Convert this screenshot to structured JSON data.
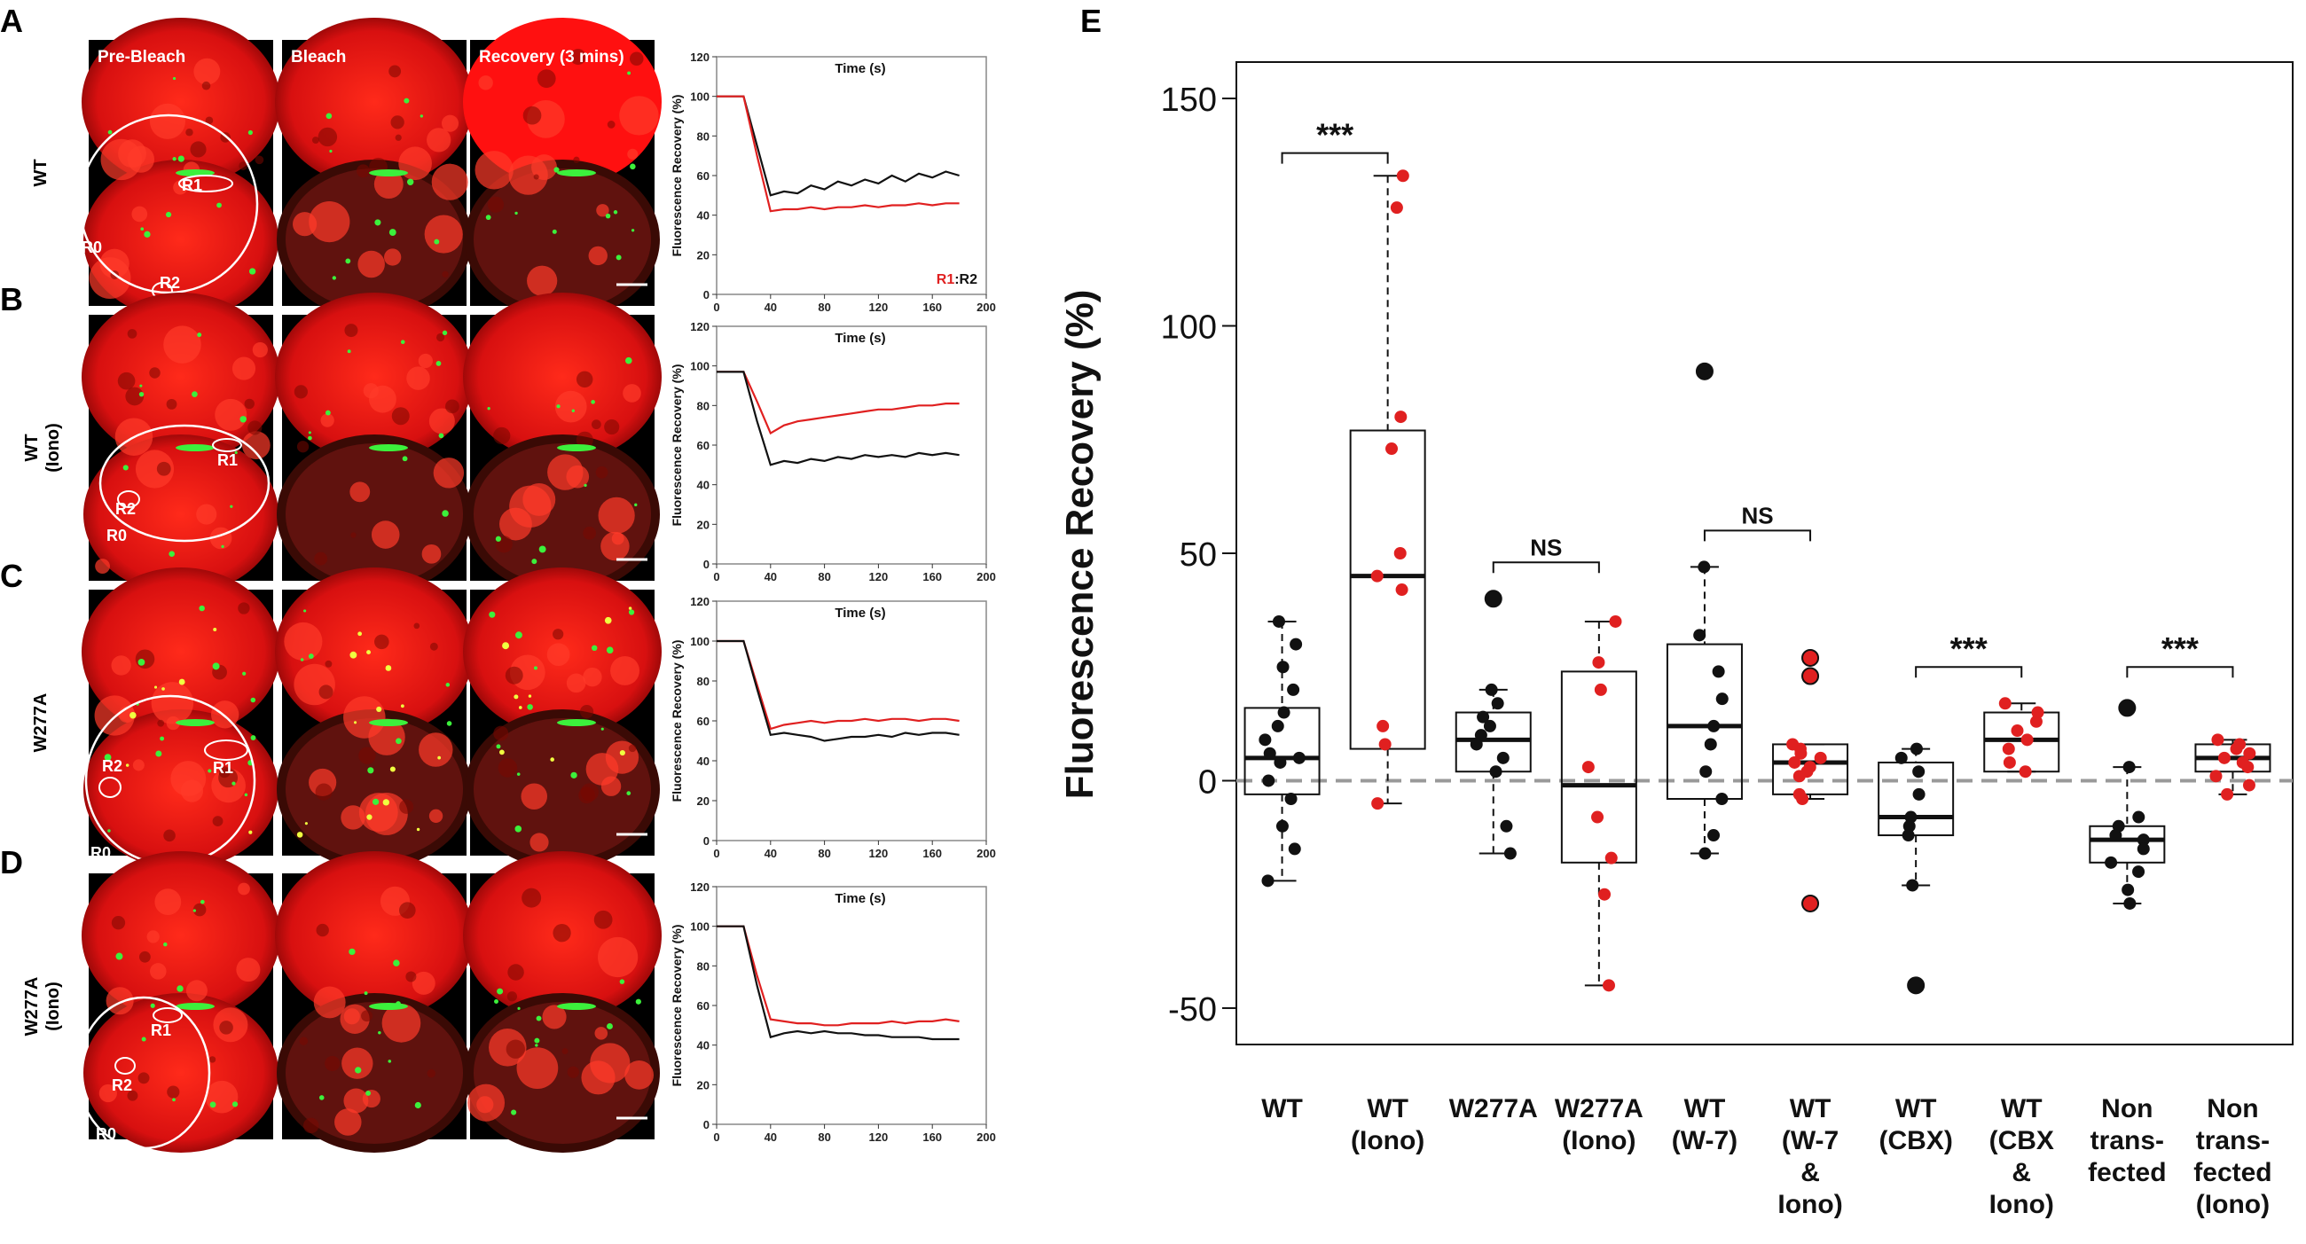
{
  "panel_letters": [
    "A",
    "B",
    "C",
    "D",
    "E"
  ],
  "micro_column_labels": [
    "Pre-Bleach",
    "Bleach",
    "Recovery (3 mins)"
  ],
  "row_labels": [
    [
      "WT"
    ],
    [
      "WT",
      "(Iono)"
    ],
    [
      "W277A"
    ],
    [
      "W277A",
      "(Iono)"
    ]
  ],
  "roi_labels": {
    "r0": "R0",
    "r1": "R1",
    "r2": "R2"
  },
  "colors": {
    "red_series": "#e02020",
    "black_series": "#111111",
    "green_signal": "#3cf03c",
    "cell_red": "#ff1a1a"
  },
  "chart_data": [
    {
      "type": "line",
      "panel": "A",
      "title": "Time (s)",
      "xlabel": "Time (s)",
      "ylabel": "Fluorescence Recovery (%)",
      "xlim": [
        0,
        200
      ],
      "ylim": [
        0,
        120
      ],
      "xticks": [
        0,
        40,
        80,
        120,
        160,
        200
      ],
      "yticks": [
        0,
        20,
        40,
        60,
        80,
        100,
        120
      ],
      "legend": {
        "red": "R1",
        "sep": ":",
        "black": "R2"
      },
      "x": [
        0,
        10,
        20,
        30,
        40,
        50,
        60,
        70,
        80,
        90,
        100,
        110,
        120,
        130,
        140,
        150,
        160,
        170,
        180
      ],
      "series": [
        {
          "name": "R2",
          "color": "black",
          "values": [
            100,
            100,
            100,
            75,
            50,
            52,
            51,
            55,
            53,
            57,
            55,
            58,
            56,
            60,
            57,
            61,
            59,
            62,
            60
          ]
        },
        {
          "name": "R1",
          "color": "red",
          "values": [
            100,
            100,
            100,
            70,
            42,
            43,
            43,
            44,
            43,
            44,
            44,
            45,
            44,
            45,
            45,
            46,
            45,
            46,
            46
          ]
        }
      ]
    },
    {
      "type": "line",
      "panel": "B",
      "title": "Time (s)",
      "xlabel": "Time (s)",
      "ylabel": "Fluorescence Recovery (%)",
      "xlim": [
        0,
        200
      ],
      "ylim": [
        0,
        120
      ],
      "xticks": [
        0,
        40,
        80,
        120,
        160,
        200
      ],
      "yticks": [
        0,
        20,
        40,
        60,
        80,
        100,
        120
      ],
      "x": [
        0,
        10,
        20,
        30,
        40,
        50,
        60,
        70,
        80,
        90,
        100,
        110,
        120,
        130,
        140,
        150,
        160,
        170,
        180
      ],
      "series": [
        {
          "name": "R1",
          "color": "red",
          "values": [
            97,
            97,
            97,
            82,
            66,
            70,
            72,
            73,
            74,
            75,
            76,
            77,
            78,
            78,
            79,
            80,
            80,
            81,
            81
          ]
        },
        {
          "name": "R2",
          "color": "black",
          "values": [
            97,
            97,
            97,
            72,
            50,
            52,
            51,
            53,
            52,
            54,
            53,
            55,
            54,
            55,
            54,
            56,
            55,
            56,
            55
          ]
        }
      ]
    },
    {
      "type": "line",
      "panel": "C",
      "title": "Time (s)",
      "xlabel": "Time (s)",
      "ylabel": "Fluorescence Recovery (%)",
      "xlim": [
        0,
        200
      ],
      "ylim": [
        0,
        120
      ],
      "xticks": [
        0,
        40,
        80,
        120,
        160,
        200
      ],
      "yticks": [
        0,
        20,
        40,
        60,
        80,
        100,
        120
      ],
      "x": [
        0,
        10,
        20,
        30,
        40,
        50,
        60,
        70,
        80,
        90,
        100,
        110,
        120,
        130,
        140,
        150,
        160,
        170,
        180
      ],
      "series": [
        {
          "name": "R1",
          "color": "red",
          "values": [
            100,
            100,
            100,
            78,
            56,
            58,
            59,
            60,
            59,
            60,
            60,
            61,
            60,
            61,
            61,
            60,
            61,
            61,
            60
          ]
        },
        {
          "name": "R2",
          "color": "black",
          "values": [
            100,
            100,
            100,
            76,
            53,
            54,
            53,
            52,
            50,
            51,
            52,
            52,
            53,
            52,
            54,
            53,
            54,
            54,
            53
          ]
        }
      ]
    },
    {
      "type": "line",
      "panel": "D",
      "title": "Time (s)",
      "xlabel": "Time (s)",
      "ylabel": "Fluorescence Recovery (%)",
      "xlim": [
        0,
        200
      ],
      "ylim": [
        0,
        120
      ],
      "xticks": [
        0,
        40,
        80,
        120,
        160,
        200
      ],
      "yticks": [
        0,
        20,
        40,
        60,
        80,
        100,
        120
      ],
      "x": [
        0,
        10,
        20,
        30,
        40,
        50,
        60,
        70,
        80,
        90,
        100,
        110,
        120,
        130,
        140,
        150,
        160,
        170,
        180
      ],
      "series": [
        {
          "name": "R1",
          "color": "red",
          "values": [
            100,
            100,
            100,
            75,
            53,
            52,
            51,
            51,
            50,
            50,
            51,
            51,
            51,
            52,
            51,
            52,
            52,
            53,
            52
          ]
        },
        {
          "name": "R2",
          "color": "black",
          "values": [
            100,
            100,
            100,
            70,
            44,
            46,
            47,
            46,
            47,
            46,
            46,
            45,
            45,
            44,
            44,
            44,
            43,
            43,
            43
          ]
        }
      ]
    },
    {
      "type": "box",
      "panel": "E",
      "ylabel": "Fluorescence Recovery (%)",
      "ylim": [
        -58,
        158
      ],
      "yticks": [
        -50,
        0,
        50,
        100,
        150
      ],
      "reference_line": 0,
      "categories": [
        [
          "WT"
        ],
        [
          "WT",
          "(Iono)"
        ],
        [
          "W277A"
        ],
        [
          "W277A",
          "(Iono)"
        ],
        [
          "WT",
          "(W-7)"
        ],
        [
          "WT",
          "(W-7",
          "&",
          "Iono)"
        ],
        [
          "WT",
          "(CBX)"
        ],
        [
          "WT",
          "(CBX",
          "&",
          "Iono)"
        ],
        [
          "Non",
          "trans-",
          "fected"
        ],
        [
          "Non",
          "trans-",
          "fected",
          "(Iono)"
        ]
      ],
      "groups": [
        {
          "color": "black",
          "q1": -3,
          "median": 5,
          "q3": 16,
          "whisker_low": -22,
          "whisker_high": 35,
          "points": [
            35,
            30,
            25,
            20,
            15,
            12,
            9,
            6,
            5,
            4,
            0,
            -4,
            -10,
            -15,
            -22
          ],
          "outliers": []
        },
        {
          "color": "red",
          "q1": 7,
          "median": 45,
          "q3": 77,
          "whisker_low": -5,
          "whisker_high": 133,
          "points": [
            133,
            126,
            80,
            73,
            50,
            45,
            42,
            12,
            8,
            -5
          ],
          "outliers": []
        },
        {
          "color": "black",
          "q1": 2,
          "median": 9,
          "q3": 15,
          "whisker_low": -16,
          "whisker_high": 20,
          "points": [
            20,
            17,
            14,
            12,
            10,
            8,
            5,
            2,
            -10,
            -16
          ],
          "outliers": [
            40
          ]
        },
        {
          "color": "red",
          "q1": -18,
          "median": -1,
          "q3": 24,
          "whisker_low": -45,
          "whisker_high": 35,
          "points": [
            35,
            26,
            20,
            3,
            -8,
            -17,
            -25,
            -45
          ],
          "outliers": []
        },
        {
          "color": "black",
          "q1": -4,
          "median": 12,
          "q3": 30,
          "whisker_low": -16,
          "whisker_high": 47,
          "points": [
            47,
            32,
            24,
            18,
            12,
            8,
            2,
            -4,
            -12,
            -16
          ],
          "outliers": [
            90
          ]
        },
        {
          "color": "red",
          "q1": -3,
          "median": 4,
          "q3": 8,
          "whisker_low": -4,
          "whisker_high": 8,
          "points": [
            8,
            7,
            6,
            5,
            4,
            3,
            2,
            1,
            -3,
            -4
          ],
          "outliers": [
            27,
            23,
            -27
          ]
        },
        {
          "color": "black",
          "q1": -12,
          "median": -8,
          "q3": 4,
          "whisker_low": -23,
          "whisker_high": 7,
          "points": [
            7,
            5,
            2,
            -3,
            -8,
            -10,
            -12,
            -23
          ],
          "outliers": [
            -45
          ]
        },
        {
          "color": "red",
          "q1": 2,
          "median": 9,
          "q3": 15,
          "whisker_low": 2,
          "whisker_high": 17,
          "points": [
            17,
            15,
            13,
            11,
            9,
            7,
            4,
            2
          ],
          "outliers": []
        },
        {
          "color": "black",
          "q1": -18,
          "median": -13,
          "q3": -10,
          "whisker_low": -27,
          "whisker_high": 3,
          "points": [
            3,
            -8,
            -10,
            -12,
            -13,
            -15,
            -18,
            -20,
            -24,
            -27
          ],
          "outliers": [
            16
          ]
        },
        {
          "color": "red",
          "q1": 2,
          "median": 5,
          "q3": 8,
          "whisker_low": -3,
          "whisker_high": 9,
          "points": [
            9,
            8,
            7,
            6,
            5,
            4,
            3,
            1,
            -1,
            -3
          ],
          "outliers": []
        }
      ],
      "comparisons": [
        {
          "between": [
            1,
            2
          ],
          "label": "***",
          "y": 138
        },
        {
          "between": [
            3,
            4
          ],
          "label": "NS",
          "y": 48
        },
        {
          "between": [
            5,
            6
          ],
          "label": "NS",
          "y": 55
        },
        {
          "between": [
            7,
            8
          ],
          "label": "***",
          "y": 25
        },
        {
          "between": [
            9,
            10
          ],
          "label": "***",
          "y": 25
        }
      ]
    }
  ]
}
